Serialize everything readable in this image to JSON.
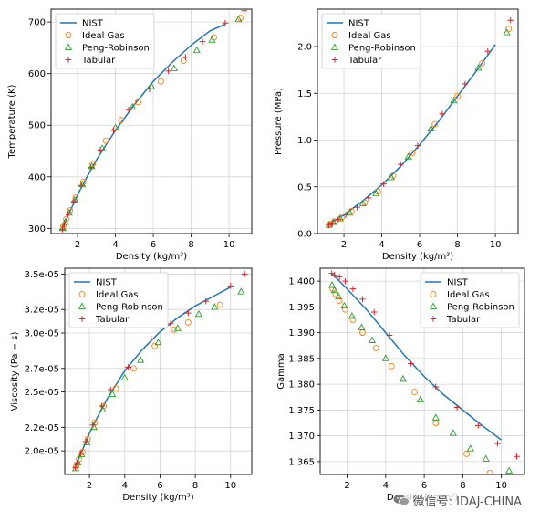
{
  "watermark": {
    "text": "微信号: IDAJ-CHINA",
    "icon": "wechat-icon"
  },
  "legend_labels": [
    "NIST",
    "Ideal Gas",
    "Peng-Robinson",
    "Tabular"
  ],
  "colors": {
    "NIST": "#1f77b4",
    "Ideal Gas": "#ff7f0e",
    "Peng-Robinson": "#2ca02c",
    "Tabular": "#d62728"
  },
  "chart_data": [
    {
      "type": "scatter",
      "title": "",
      "xlabel": "Density (kg/m³)",
      "ylabel": "Temperature (K)",
      "xlim": [
        0.6,
        11.2
      ],
      "ylim": [
        290,
        725
      ],
      "xticks": [
        "2",
        "4",
        "6",
        "8",
        "10"
      ],
      "yticks": [
        "300",
        "400",
        "500",
        "600",
        "700"
      ],
      "grid": true,
      "legend": "top-left",
      "series": [
        {
          "name": "NIST",
          "kind": "line",
          "x": [
            1.2,
            1.5,
            2.0,
            2.5,
            3.0,
            4.0,
            5.0,
            6.0,
            7.0,
            8.0,
            9.0,
            9.8
          ],
          "y": [
            300,
            325,
            365,
            400,
            433,
            490,
            540,
            585,
            622,
            655,
            683,
            696
          ]
        },
        {
          "name": "Ideal Gas",
          "kind": "marker",
          "marker": "circle",
          "x": [
            1.25,
            1.4,
            1.6,
            1.9,
            2.3,
            2.8,
            3.5,
            4.3,
            5.2,
            6.4,
            7.6,
            9.2,
            10.6
          ],
          "y": [
            305,
            318,
            335,
            360,
            390,
            425,
            470,
            510,
            545,
            585,
            625,
            670,
            708
          ]
        },
        {
          "name": "Peng-Robinson",
          "kind": "marker",
          "marker": "triangle",
          "x": [
            1.22,
            1.35,
            1.55,
            1.85,
            2.25,
            2.75,
            3.3,
            4.0,
            4.9,
            5.9,
            7.1,
            8.3,
            9.1,
            10.5
          ],
          "y": [
            300,
            312,
            330,
            355,
            385,
            420,
            455,
            495,
            535,
            575,
            610,
            645,
            665,
            705
          ]
        },
        {
          "name": "Tabular",
          "kind": "marker",
          "marker": "plus",
          "x": [
            1.2,
            1.3,
            1.5,
            1.8,
            2.2,
            2.7,
            3.2,
            3.9,
            4.7,
            5.8,
            6.8,
            7.7,
            8.6,
            9.8,
            10.8
          ],
          "y": [
            298,
            308,
            328,
            352,
            383,
            418,
            452,
            490,
            530,
            570,
            605,
            632,
            662,
            698,
            722
          ]
        }
      ]
    },
    {
      "type": "scatter",
      "title": "",
      "xlabel": "Density (kg/m³)",
      "ylabel": "Pressure (MPa)",
      "xlim": [
        0.6,
        11.2
      ],
      "ylim": [
        0.0,
        2.4
      ],
      "xticks": [
        "2",
        "4",
        "6",
        "8",
        "10"
      ],
      "yticks": [
        "0.0",
        "0.5",
        "1.0",
        "1.5",
        "2.0"
      ],
      "grid": true,
      "legend": "top-left",
      "series": [
        {
          "name": "NIST",
          "kind": "line",
          "x": [
            1.2,
            2.0,
            3.0,
            4.0,
            5.0,
            6.0,
            7.0,
            8.0,
            9.0,
            10.0
          ],
          "y": [
            0.1,
            0.2,
            0.35,
            0.52,
            0.72,
            0.95,
            1.2,
            1.47,
            1.74,
            2.02
          ]
        },
        {
          "name": "Ideal Gas",
          "kind": "marker",
          "marker": "circle",
          "x": [
            1.25,
            1.5,
            1.9,
            2.4,
            3.1,
            3.8,
            4.6,
            5.6,
            6.8,
            8.0,
            9.3,
            10.7
          ],
          "y": [
            0.1,
            0.13,
            0.18,
            0.24,
            0.33,
            0.45,
            0.62,
            0.86,
            1.17,
            1.47,
            1.82,
            2.19
          ]
        },
        {
          "name": "Peng-Robinson",
          "kind": "marker",
          "marker": "triangle",
          "x": [
            1.22,
            1.45,
            1.8,
            2.3,
            3.0,
            3.7,
            4.5,
            5.4,
            6.6,
            7.8,
            9.1,
            10.6
          ],
          "y": [
            0.09,
            0.12,
            0.16,
            0.22,
            0.32,
            0.43,
            0.6,
            0.82,
            1.12,
            1.42,
            1.77,
            2.15
          ]
        },
        {
          "name": "Tabular",
          "kind": "marker",
          "marker": "plus",
          "x": [
            1.2,
            1.4,
            1.7,
            2.1,
            2.7,
            3.3,
            4.1,
            5.0,
            5.9,
            7.2,
            8.4,
            9.6,
            10.8
          ],
          "y": [
            0.09,
            0.11,
            0.15,
            0.2,
            0.28,
            0.38,
            0.53,
            0.74,
            0.94,
            1.28,
            1.6,
            1.95,
            2.28
          ]
        }
      ]
    },
    {
      "type": "scatter",
      "title": "",
      "xlabel": "Density (kg/m³)",
      "ylabel": "Viscosity (Pa − s)",
      "xlim": [
        0.6,
        11.2
      ],
      "ylim": [
        1.8e-05,
        3.55e-05
      ],
      "xticks": [
        "2",
        "4",
        "6",
        "8",
        "10"
      ],
      "yticks": [
        "2.0e-05",
        "2.2e-05",
        "2.5e-05",
        "2.7e-05",
        "3.0e-05",
        "3.2e-05",
        "3.5e-05"
      ],
      "grid": true,
      "legend": "top-left",
      "series": [
        {
          "name": "NIST",
          "kind": "line",
          "x": [
            1.2,
            1.5,
            2.0,
            2.5,
            3.0,
            4.0,
            5.0,
            6.0,
            7.0,
            8.0,
            9.0,
            10.0
          ],
          "y": [
            1.87e-05,
            1.97e-05,
            2.15e-05,
            2.3e-05,
            2.44e-05,
            2.68e-05,
            2.86e-05,
            3.01e-05,
            3.13e-05,
            3.23e-05,
            3.31e-05,
            3.39e-05
          ]
        },
        {
          "name": "Ideal Gas",
          "kind": "marker",
          "marker": "circle",
          "x": [
            1.25,
            1.4,
            1.6,
            1.9,
            2.3,
            2.8,
            3.5,
            4.5,
            5.7,
            6.8,
            7.6,
            9.4
          ],
          "y": [
            1.87e-05,
            1.93e-05,
            1.99e-05,
            2.1e-05,
            2.24e-05,
            2.38e-05,
            2.53e-05,
            2.7e-05,
            2.89e-05,
            3.03e-05,
            3.09e-05,
            3.24e-05
          ]
        },
        {
          "name": "Peng-Robinson",
          "kind": "marker",
          "marker": "triangle",
          "x": [
            1.22,
            1.35,
            1.55,
            1.85,
            2.25,
            2.75,
            3.3,
            4.0,
            4.9,
            5.9,
            7.0,
            8.2,
            9.1,
            10.6
          ],
          "y": [
            1.85e-05,
            1.9e-05,
            1.97e-05,
            2.07e-05,
            2.2e-05,
            2.35e-05,
            2.48e-05,
            2.62e-05,
            2.77e-05,
            2.92e-05,
            3.04e-05,
            3.16e-05,
            3.22e-05,
            3.35e-05
          ]
        },
        {
          "name": "Tabular",
          "kind": "marker",
          "marker": "plus",
          "x": [
            1.2,
            1.3,
            1.5,
            1.8,
            2.2,
            2.7,
            3.2,
            4.2,
            5.5,
            6.6,
            7.6,
            8.6,
            10.0,
            10.8
          ],
          "y": [
            1.86e-05,
            1.9e-05,
            1.98e-05,
            2.08e-05,
            2.22e-05,
            2.38e-05,
            2.52e-05,
            2.71e-05,
            2.95e-05,
            3.08e-05,
            3.17e-05,
            3.27e-05,
            3.4e-05,
            3.5e-05
          ]
        }
      ]
    },
    {
      "type": "scatter",
      "title": "",
      "xlabel": "Density (kg/m³)",
      "ylabel": "Gamma",
      "xlim": [
        0.6,
        11.2
      ],
      "ylim": [
        1.3625,
        1.4025
      ],
      "xticks": [
        "2",
        "4",
        "6",
        "8",
        "10"
      ],
      "yticks": [
        "1.365",
        "1.370",
        "1.375",
        "1.380",
        "1.385",
        "1.390",
        "1.395",
        "1.400"
      ],
      "grid": true,
      "legend": "top-right",
      "series": [
        {
          "name": "NIST",
          "kind": "line",
          "x": [
            1.2,
            2.0,
            3.0,
            4.0,
            5.0,
            6.0,
            7.0,
            8.0,
            9.0,
            10.0
          ],
          "y": [
            1.4015,
            1.3985,
            1.3945,
            1.39,
            1.3855,
            1.3815,
            1.378,
            1.375,
            1.372,
            1.3692
          ]
        },
        {
          "name": "Ideal Gas",
          "kind": "marker",
          "marker": "circle",
          "x": [
            1.25,
            1.4,
            1.6,
            1.9,
            2.3,
            2.8,
            3.5,
            4.3,
            5.5,
            6.6,
            8.2,
            9.4
          ],
          "y": [
            1.3985,
            1.3975,
            1.3962,
            1.3945,
            1.3925,
            1.39,
            1.387,
            1.3835,
            1.3785,
            1.3725,
            1.3665,
            1.3628
          ]
        },
        {
          "name": "Peng-Robinson",
          "kind": "marker",
          "marker": "triangle",
          "x": [
            1.22,
            1.35,
            1.55,
            1.85,
            2.25,
            2.75,
            3.3,
            4.0,
            4.9,
            5.8,
            6.6,
            7.5,
            8.4,
            9.2,
            10.4
          ],
          "y": [
            1.3992,
            1.3982,
            1.397,
            1.3952,
            1.3932,
            1.391,
            1.3885,
            1.385,
            1.381,
            1.377,
            1.3735,
            1.3705,
            1.3675,
            1.3655,
            1.3632
          ]
        },
        {
          "name": "Tabular",
          "kind": "marker",
          "marker": "plus",
          "x": [
            1.2,
            1.35,
            1.6,
            1.9,
            2.3,
            2.8,
            3.4,
            4.2,
            5.3,
            6.6,
            7.7,
            8.8,
            9.8,
            10.8
          ],
          "y": [
            1.4015,
            1.4012,
            1.4008,
            1.4,
            1.3985,
            1.3965,
            1.394,
            1.3895,
            1.384,
            1.3795,
            1.3755,
            1.372,
            1.3685,
            1.366
          ]
        }
      ]
    }
  ]
}
